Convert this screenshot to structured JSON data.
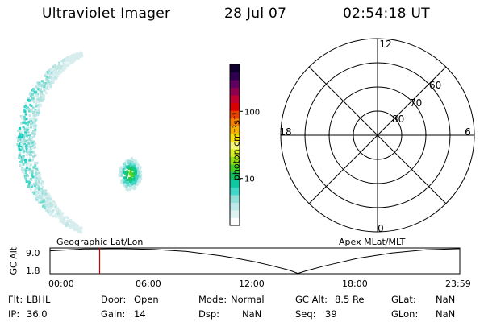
{
  "header": {
    "instrument": "Ultraviolet Imager",
    "date": "28 Jul 07",
    "time": "02:54:18 UT"
  },
  "colorbar": {
    "label": "photon cm⁻²s⁻¹",
    "ticks": [
      {
        "label": "100",
        "value": 100
      },
      {
        "label": "10",
        "value": 10
      }
    ],
    "colors": [
      "#ffffff",
      "#dff2f2",
      "#bfe8e8",
      "#90e0d8",
      "#40d8c8",
      "#10c8a0",
      "#10c060",
      "#40d020",
      "#90e010",
      "#d8f020",
      "#f8f878",
      "#f8e000",
      "#f8b000",
      "#f88000",
      "#e84000",
      "#d80000",
      "#c00030",
      "#900050",
      "#600060",
      "#300050",
      "#100030"
    ]
  },
  "polar_plot": {
    "mlt_labels": {
      "top": "12",
      "left": "18",
      "right": "6",
      "bottom": "0"
    },
    "lat_labels": [
      "80",
      "70",
      "60"
    ],
    "rings_mlat": [
      80,
      70,
      60,
      50
    ]
  },
  "altitude_plot": {
    "left_title": "Geographic Lat/Lon",
    "right_title": "Apex MLat/MLT",
    "ylabel": "GC Alt",
    "y_ticks": [
      "9.0",
      "1.8"
    ],
    "x_ticks": [
      "00:00",
      "06:00",
      "12:00",
      "18:00",
      "23:59"
    ],
    "current_time_hours": 2.905,
    "current_marker_color": "#d00000",
    "ymin": 1.8,
    "ymax": 9.0,
    "curve_hours": [
      0,
      2,
      4,
      6,
      8,
      10,
      11,
      12,
      13,
      14,
      14.5,
      15,
      16,
      17,
      18,
      20,
      22,
      23.98
    ],
    "curve_alt": [
      8.2,
      8.7,
      8.8,
      8.6,
      8.0,
      6.8,
      6.0,
      5.1,
      4.0,
      2.8,
      1.9,
      2.6,
      3.9,
      5.0,
      6.1,
      7.6,
      8.5,
      8.8
    ]
  },
  "info": {
    "row1": [
      {
        "label": "Flt:",
        "value": "LBHL"
      },
      {
        "label": "Door:",
        "value": "Open"
      },
      {
        "label": "Mode:",
        "value": "Normal"
      },
      {
        "label": "GC Alt:",
        "value": "8.5 Re"
      },
      {
        "label": "GLat:",
        "value": "NaN"
      }
    ],
    "row2": [
      {
        "label": "IP:",
        "value": "36.0"
      },
      {
        "label": "Gain:",
        "value": "14"
      },
      {
        "label": "Dsp:",
        "value": "NaN"
      },
      {
        "label": "Seq:",
        "value": "39"
      },
      {
        "label": "GLon:",
        "value": "NaN"
      }
    ]
  }
}
